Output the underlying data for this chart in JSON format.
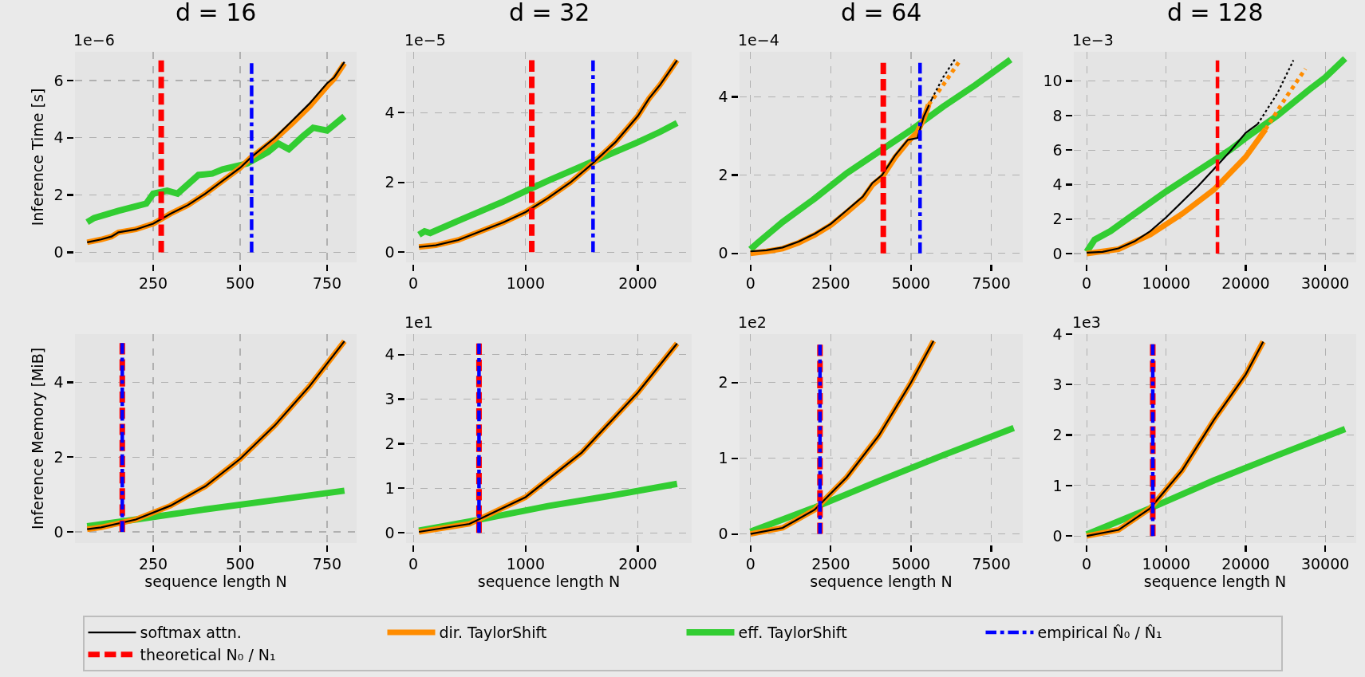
{
  "chart_data": [
    {
      "type": "line",
      "title": "d = 16",
      "ylabel": "Inference Time [s]",
      "annotations": [
        "1e−6"
      ],
      "xlim": [
        25,
        835
      ],
      "ylim": [
        -0.35,
        7.0
      ],
      "xticks": [
        250,
        500,
        750
      ],
      "yticks": [
        0,
        2,
        4,
        6
      ],
      "grid": true,
      "legend": "bottom",
      "series": [
        {
          "name": "softmax attn.",
          "color": "#000000",
          "line_style": "solid",
          "x": [
            60,
            100,
            130,
            150,
            200,
            250,
            300,
            350,
            400,
            450,
            500,
            530,
            600,
            650,
            700,
            750,
            770,
            800
          ],
          "values": [
            0.35,
            0.45,
            0.55,
            0.7,
            0.8,
            1.0,
            1.35,
            1.65,
            2.05,
            2.5,
            2.95,
            3.3,
            4.0,
            4.6,
            5.2,
            5.9,
            6.1,
            6.65
          ]
        },
        {
          "name": "dir. TaylorShift",
          "color": "#ff8c00",
          "line_style": "solid",
          "x": [
            60,
            100,
            130,
            150,
            200,
            250,
            300,
            350,
            400,
            450,
            500,
            530,
            600,
            650,
            700,
            750,
            770,
            800
          ],
          "values": [
            0.35,
            0.45,
            0.55,
            0.7,
            0.8,
            1.0,
            1.35,
            1.65,
            2.05,
            2.5,
            2.95,
            3.3,
            3.95,
            4.5,
            5.1,
            5.8,
            6.05,
            6.6
          ]
        },
        {
          "name": "eff. TaylorShift",
          "color": "#32cd32",
          "line_style": "solid",
          "x": [
            60,
            80,
            150,
            230,
            250,
            290,
            320,
            380,
            420,
            450,
            520,
            580,
            610,
            640,
            680,
            710,
            750,
            800
          ],
          "values": [
            1.05,
            1.2,
            1.45,
            1.7,
            2.05,
            2.15,
            2.05,
            2.7,
            2.75,
            2.9,
            3.1,
            3.5,
            3.8,
            3.6,
            4.05,
            4.35,
            4.25,
            4.75
          ]
        },
        {
          "name": "empirical N̂₀ / N̂₁",
          "color": "#0000ff",
          "line_style": "dashdot",
          "x": [
            533,
            533
          ],
          "values": [
            0,
            6.6
          ]
        },
        {
          "name": "theoretical N₀ / N₁",
          "color": "#ff0000",
          "line_style": "dashed",
          "x": [
            273,
            273
          ],
          "values": [
            0,
            6.7
          ]
        }
      ]
    },
    {
      "type": "line",
      "title": "d = 32",
      "annotations": [
        "1e−5"
      ],
      "xlim": [
        -65,
        2480
      ],
      "ylim": [
        -0.29,
        5.74
      ],
      "xticks": [
        0,
        1000,
        2000
      ],
      "yticks": [
        0,
        2,
        4
      ],
      "grid": true,
      "series": [
        {
          "color": "#000000",
          "line_style": "solid",
          "x": [
            50,
            200,
            400,
            600,
            800,
            1000,
            1100,
            1200,
            1400,
            1600,
            1800,
            2000,
            2100,
            2200,
            2350
          ],
          "values": [
            0.15,
            0.2,
            0.35,
            0.6,
            0.85,
            1.15,
            1.35,
            1.55,
            2.0,
            2.55,
            3.15,
            3.9,
            4.4,
            4.8,
            5.5
          ]
        },
        {
          "color": "#ff8c00",
          "line_style": "solid",
          "x": [
            50,
            200,
            400,
            600,
            800,
            1000,
            1100,
            1200,
            1400,
            1600,
            1800,
            2000,
            2100,
            2200,
            2350
          ],
          "values": [
            0.15,
            0.2,
            0.35,
            0.6,
            0.85,
            1.15,
            1.35,
            1.55,
            2.0,
            2.55,
            3.15,
            3.9,
            4.4,
            4.8,
            5.5
          ]
        },
        {
          "color": "#32cd32",
          "line_style": "solid",
          "x": [
            50,
            100,
            150,
            400,
            800,
            1000,
            1200,
            1600,
            2000,
            2200,
            2350
          ],
          "values": [
            0.5,
            0.6,
            0.55,
            0.9,
            1.45,
            1.75,
            2.05,
            2.6,
            3.15,
            3.45,
            3.7
          ]
        },
        {
          "color": "#0000ff",
          "line_style": "dashdot",
          "x": [
            1601,
            1601
          ],
          "values": [
            0,
            5.5
          ]
        },
        {
          "color": "#ff0000",
          "line_style": "dashed",
          "x": [
            1055,
            1055
          ],
          "values": [
            0,
            5.5
          ]
        }
      ]
    },
    {
      "type": "line",
      "title": "d = 64",
      "annotations": [
        "1e−4"
      ],
      "xlim": [
        -340,
        8480
      ],
      "ylim": [
        -0.23,
        5.15
      ],
      "xticks": [
        0,
        2500,
        5000,
        7500
      ],
      "yticks": [
        0,
        2,
        4
      ],
      "grid": true,
      "series": [
        {
          "color": "#000000",
          "line_style": "solid",
          "x": [
            0,
            500,
            1000,
            1500,
            2000,
            2500,
            3000,
            3500,
            3800,
            4100,
            4500,
            4900,
            5200,
            5400,
            5650
          ],
          "values": [
            0.05,
            0.08,
            0.15,
            0.3,
            0.5,
            0.75,
            1.1,
            1.45,
            1.8,
            2.0,
            2.5,
            2.9,
            2.95,
            3.5,
            3.95
          ]
        },
        {
          "color": "#ff8c00",
          "line_style": "solid",
          "x": [
            0,
            500,
            1000,
            1500,
            2000,
            2500,
            3000,
            3500,
            3800,
            4100,
            4500,
            4900,
            5200,
            5400,
            5550
          ],
          "values": [
            0.0,
            0.05,
            0.12,
            0.27,
            0.47,
            0.72,
            1.05,
            1.4,
            1.75,
            1.95,
            2.45,
            2.85,
            3.1,
            3.45,
            3.8
          ]
        },
        {
          "color": "#32cd32",
          "line_style": "solid",
          "x": [
            0,
            200,
            1000,
            2000,
            3000,
            4000,
            5000,
            6000,
            7000,
            8100
          ],
          "values": [
            0.1,
            0.25,
            0.8,
            1.4,
            2.05,
            2.6,
            3.15,
            3.75,
            4.3,
            4.95
          ]
        },
        {
          "color": "#0000ff",
          "line_style": "dashdot",
          "x": [
            5281,
            5281
          ],
          "values": [
            0,
            4.87
          ]
        },
        {
          "color": "#ff0000",
          "line_style": "dashed",
          "x": [
            4137,
            4137
          ],
          "values": [
            0,
            4.87
          ]
        },
        {
          "color": "#000000",
          "line_style": "dotted",
          "x": [
            5650,
            6000,
            6400
          ],
          "values": [
            3.95,
            4.5,
            5.0
          ]
        },
        {
          "color": "#ff8c00",
          "line_style": "dotted",
          "x": [
            5550,
            6000,
            6500
          ],
          "values": [
            3.8,
            4.3,
            4.9
          ]
        }
      ]
    },
    {
      "type": "line",
      "title": "d = 128",
      "annotations": [
        "1e−3"
      ],
      "xlim": [
        -1620,
        33900
      ],
      "ylim": [
        -0.51,
        11.69
      ],
      "xticks": [
        0,
        10000,
        20000,
        30000
      ],
      "yticks": [
        0,
        2,
        4,
        6,
        8,
        10
      ],
      "grid": true,
      "series": [
        {
          "color": "#000000",
          "line_style": "solid",
          "x": [
            0,
            2000,
            4000,
            6000,
            8000,
            10000,
            12000,
            14000,
            16000,
            18000,
            20000,
            21500
          ],
          "values": [
            0.05,
            0.1,
            0.3,
            0.7,
            1.3,
            2.1,
            3.0,
            3.9,
            4.9,
            5.9,
            7.0,
            7.5
          ]
        },
        {
          "color": "#ff8c00",
          "line_style": "solid",
          "x": [
            0,
            4000,
            8000,
            12000,
            16000,
            20000,
            22500
          ],
          "values": [
            0,
            0.25,
            1.1,
            2.3,
            3.7,
            5.6,
            7.2
          ]
        },
        {
          "color": "#32cd32",
          "line_style": "solid",
          "x": [
            0,
            1000,
            3000,
            6000,
            10000,
            14000,
            18000,
            20000,
            24000,
            28000,
            30000,
            32500
          ],
          "values": [
            0.1,
            0.8,
            1.3,
            2.3,
            3.6,
            4.8,
            6.0,
            6.7,
            8.0,
            9.5,
            10.2,
            11.3
          ]
        },
        {
          "color": "#ff0000",
          "line_style": "dashed",
          "x": [
            16450,
            16450
          ],
          "values": [
            0,
            11.2
          ]
        },
        {
          "color": "#000000",
          "line_style": "dotted",
          "x": [
            21500,
            24000,
            26000
          ],
          "values": [
            7.5,
            9.3,
            11.2
          ]
        },
        {
          "color": "#ff8c00",
          "line_style": "dotted",
          "x": [
            22500,
            25000,
            27500
          ],
          "values": [
            7.2,
            9.0,
            10.7
          ]
        }
      ]
    },
    {
      "type": "line",
      "xlabel": "sequence length N",
      "ylabel": "Inference Memory [MiB]",
      "xlim": [
        25,
        835
      ],
      "ylim": [
        -0.3,
        5.29
      ],
      "xticks": [
        250,
        500,
        750
      ],
      "yticks": [
        0,
        2,
        4
      ],
      "grid": true,
      "series": [
        {
          "color": "#000000",
          "line_style": "solid",
          "x": [
            60,
            100,
            200,
            300,
            400,
            500,
            600,
            700,
            800
          ],
          "values": [
            0.07,
            0.12,
            0.33,
            0.7,
            1.22,
            1.95,
            2.85,
            3.9,
            5.1
          ]
        },
        {
          "color": "#ff8c00",
          "line_style": "solid",
          "x": [
            60,
            100,
            200,
            300,
            400,
            500,
            600,
            700,
            800
          ],
          "values": [
            0.07,
            0.12,
            0.33,
            0.7,
            1.22,
            1.95,
            2.85,
            3.9,
            5.1
          ]
        },
        {
          "color": "#32cd32",
          "line_style": "solid",
          "x": [
            60,
            200,
            400,
            600,
            800
          ],
          "values": [
            0.15,
            0.33,
            0.6,
            0.85,
            1.1
          ]
        },
        {
          "color": "#0000ff",
          "line_style": "dashdot",
          "x": [
            161,
            161
          ],
          "values": [
            0,
            5.05
          ]
        },
        {
          "color": "#ff0000",
          "line_style": "dashed",
          "x": [
            161,
            161
          ],
          "values": [
            0,
            5.05
          ]
        }
      ]
    },
    {
      "type": "line",
      "xlabel": "sequence length N",
      "annotations": [
        "1e1"
      ],
      "xlim": [
        -65,
        2480
      ],
      "ylim": [
        -0.23,
        4.46
      ],
      "xticks": [
        0,
        1000,
        2000
      ],
      "yticks": [
        0,
        1,
        2,
        3,
        4
      ],
      "grid": true,
      "series": [
        {
          "color": "#000000",
          "line_style": "solid",
          "x": [
            50,
            500,
            1000,
            1500,
            2000,
            2350
          ],
          "values": [
            0.02,
            0.2,
            0.8,
            1.8,
            3.15,
            4.25
          ]
        },
        {
          "color": "#ff8c00",
          "line_style": "solid",
          "x": [
            50,
            500,
            1000,
            1500,
            2000,
            2350
          ],
          "values": [
            0.02,
            0.2,
            0.8,
            1.8,
            3.15,
            4.25
          ]
        },
        {
          "color": "#32cd32",
          "line_style": "solid",
          "x": [
            50,
            600,
            1200,
            1800,
            2350
          ],
          "values": [
            0.05,
            0.3,
            0.6,
            0.85,
            1.1
          ]
        },
        {
          "color": "#0000ff",
          "line_style": "dashdot",
          "x": [
            585,
            585
          ],
          "values": [
            0,
            4.25
          ]
        },
        {
          "color": "#ff0000",
          "line_style": "dashed",
          "x": [
            585,
            585
          ],
          "values": [
            0,
            4.25
          ]
        }
      ]
    },
    {
      "type": "line",
      "xlabel": "sequence length N",
      "annotations": [
        "1e2"
      ],
      "xlim": [
        -340,
        8480
      ],
      "ylim": [
        -0.12,
        2.64
      ],
      "xticks": [
        0,
        2500,
        5000,
        7500
      ],
      "yticks": [
        0,
        1,
        2
      ],
      "grid": true,
      "series": [
        {
          "color": "#000000",
          "line_style": "solid",
          "x": [
            0,
            1000,
            2000,
            3000,
            4000,
            5000,
            5700
          ],
          "values": [
            0,
            0.08,
            0.32,
            0.75,
            1.3,
            2.0,
            2.55
          ]
        },
        {
          "color": "#ff8c00",
          "line_style": "solid",
          "x": [
            0,
            1000,
            2000,
            3000,
            4000,
            5000,
            5700
          ],
          "values": [
            0,
            0.08,
            0.32,
            0.75,
            1.3,
            2.0,
            2.55
          ]
        },
        {
          "color": "#32cd32",
          "line_style": "solid",
          "x": [
            0,
            2000,
            4000,
            6000,
            8200
          ],
          "values": [
            0.03,
            0.35,
            0.7,
            1.04,
            1.4
          ]
        },
        {
          "color": "#0000ff",
          "line_style": "dashdot",
          "x": [
            2165,
            2165
          ],
          "values": [
            0,
            2.5
          ]
        },
        {
          "color": "#ff0000",
          "line_style": "dashed",
          "x": [
            2165,
            2165
          ],
          "values": [
            0,
            2.5
          ]
        }
      ]
    },
    {
      "type": "line",
      "xlabel": "sequence length N",
      "annotations": [
        "1e3"
      ],
      "xlim": [
        -1620,
        33900
      ],
      "ylim": [
        -0.14,
        4.0
      ],
      "xticks": [
        0,
        10000,
        20000,
        30000
      ],
      "yticks": [
        0,
        1,
        2,
        3,
        4
      ],
      "grid": true,
      "series": [
        {
          "color": "#000000",
          "line_style": "solid",
          "x": [
            0,
            4000,
            8000,
            12000,
            16000,
            20000,
            22200
          ],
          "values": [
            0,
            0.12,
            0.55,
            1.3,
            2.3,
            3.2,
            3.85
          ]
        },
        {
          "color": "#ff8c00",
          "line_style": "solid",
          "x": [
            0,
            4000,
            8000,
            12000,
            16000,
            20000,
            22200
          ],
          "values": [
            0,
            0.12,
            0.55,
            1.3,
            2.3,
            3.2,
            3.85
          ]
        },
        {
          "color": "#32cd32",
          "line_style": "solid",
          "x": [
            0,
            8000,
            16000,
            24000,
            32500
          ],
          "values": [
            0.03,
            0.55,
            1.1,
            1.6,
            2.12
          ]
        },
        {
          "color": "#0000ff",
          "line_style": "dashdot",
          "x": [
            8310,
            8310
          ],
          "values": [
            0,
            3.8
          ]
        },
        {
          "color": "#ff0000",
          "line_style": "dashed",
          "x": [
            8310,
            8310
          ],
          "values": [
            0,
            3.8
          ]
        }
      ]
    }
  ]
}
